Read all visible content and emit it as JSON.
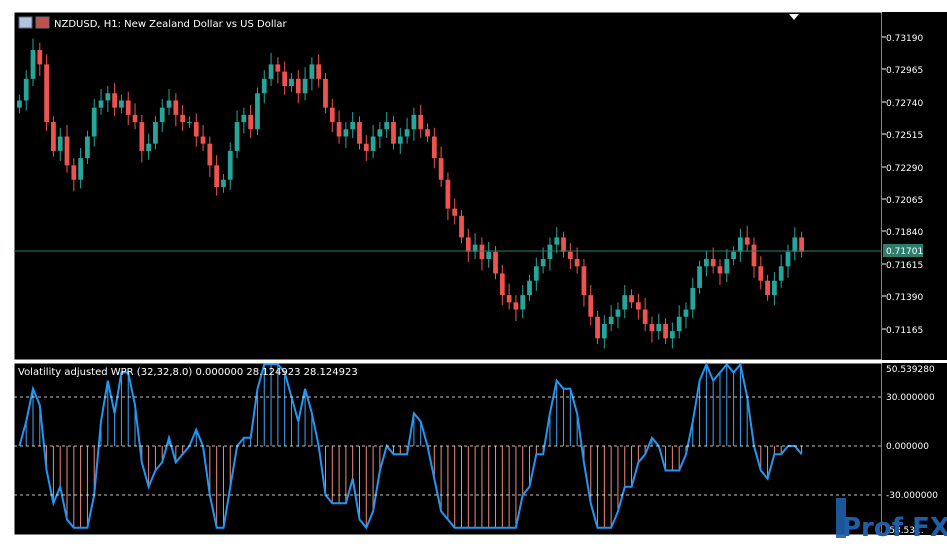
{
  "window": {
    "title": "NZDUSD, H1:  New Zealand Dollar vs US Dollar",
    "symbol": "NZDUSD",
    "timeframe": "H1"
  },
  "main_axis": {
    "labels": [
      "0.73190",
      "0.72965",
      "0.72740",
      "0.72515",
      "0.72290",
      "0.72065",
      "0.71840",
      "0.71615",
      "0.71390",
      "0.71165"
    ],
    "current_price_label": "0.71701",
    "current_price": 0.71701
  },
  "indicator": {
    "title": "Volatility adjusted WPR (32,32,8.0) 0.000000 28.124923 28.124923",
    "axis_labels": [
      "50.539280",
      "30.000000",
      "0.000000",
      "-30.000000",
      "-53.53..."
    ],
    "levels": [
      30,
      0,
      -30
    ]
  },
  "watermark": {
    "text": "Prof FX"
  },
  "colors": {
    "background": "#000000",
    "grid": "#ffffff",
    "bull": "#26a69a",
    "bear": "#ef5350",
    "price_line": "#2e7d6b",
    "price_label_bg": "#2e7d6b",
    "hist_pos": "#42a5f5",
    "hist_neg": "#ef8a7a",
    "wpr_line": "#2196f3",
    "level_line": "#ffffff"
  },
  "chart_data": {
    "type": "candlestick",
    "closes": [
      0.7275,
      0.729,
      0.731,
      0.73,
      0.726,
      0.724,
      0.725,
      0.723,
      0.722,
      0.7235,
      0.725,
      0.727,
      0.7275,
      0.728,
      0.727,
      0.7275,
      0.7265,
      0.726,
      0.724,
      0.7245,
      0.726,
      0.727,
      0.7275,
      0.7265,
      0.726,
      0.726,
      0.725,
      0.7245,
      0.723,
      0.7215,
      0.722,
      0.724,
      0.726,
      0.7265,
      0.7255,
      0.728,
      0.729,
      0.73,
      0.7295,
      0.7285,
      0.729,
      0.728,
      0.729,
      0.73,
      0.729,
      0.727,
      0.726,
      0.725,
      0.7255,
      0.726,
      0.7245,
      0.724,
      0.725,
      0.7255,
      0.726,
      0.7245,
      0.725,
      0.7255,
      0.7265,
      0.7255,
      0.725,
      0.7235,
      0.722,
      0.72,
      0.7195,
      0.718,
      0.717,
      0.7175,
      0.7165,
      0.717,
      0.7155,
      0.714,
      0.7135,
      0.713,
      0.714,
      0.715,
      0.716,
      0.7165,
      0.7175,
      0.718,
      0.717,
      0.7165,
      0.716,
      0.714,
      0.7125,
      0.711,
      0.712,
      0.7125,
      0.713,
      0.714,
      0.7135,
      0.713,
      0.712,
      0.7115,
      0.712,
      0.711,
      0.7115,
      0.7125,
      0.713,
      0.7145,
      0.716,
      0.7165,
      0.716,
      0.7155,
      0.7165,
      0.717,
      0.718,
      0.7175,
      0.716,
      0.715,
      0.714,
      0.715,
      0.716,
      0.717,
      0.718,
      0.717
    ]
  }
}
